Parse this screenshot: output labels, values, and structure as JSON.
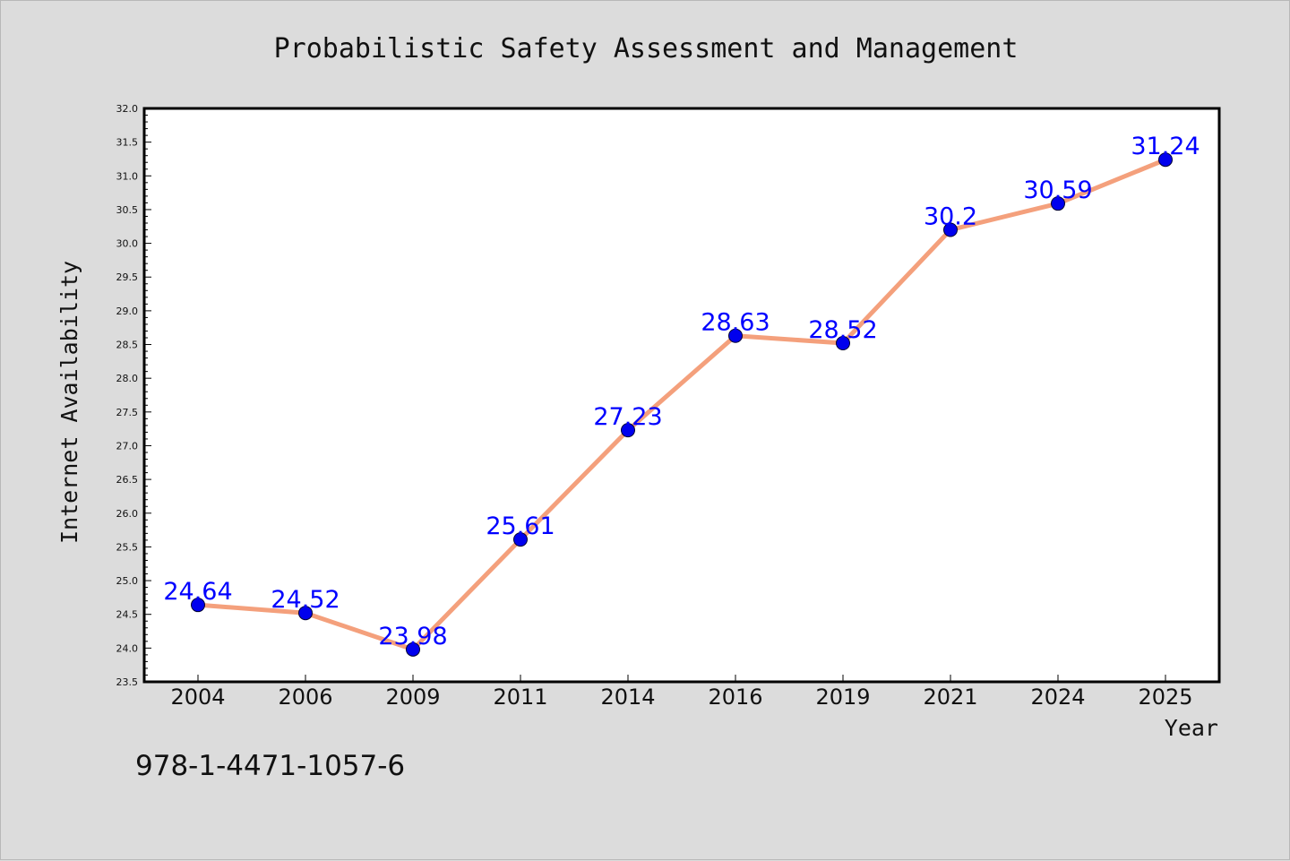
{
  "chart_data": {
    "type": "line",
    "title": "Probabilistic Safety Assessment and Management",
    "xlabel": "Year",
    "ylabel": "Internet Availability",
    "categories": [
      "2004",
      "2006",
      "2009",
      "2011",
      "2014",
      "2016",
      "2019",
      "2021",
      "2024",
      "2025"
    ],
    "series": [
      {
        "values": [
          24.64,
          24.52,
          23.98,
          25.61,
          27.23,
          28.63,
          28.52,
          30.2,
          30.59,
          31.24
        ],
        "data_labels": [
          "24.64",
          "24.52",
          "23.98",
          "25.61",
          "27.23",
          "28.63",
          "28.52",
          "30.2",
          "30.59",
          "31.24"
        ]
      }
    ],
    "ylim": [
      23.5,
      32.0
    ],
    "yticks": [
      "23.5",
      "24.0",
      "24.5",
      "25.0",
      "25.5",
      "26.0",
      "26.5",
      "27.0",
      "27.5",
      "28.0",
      "28.5",
      "29.0",
      "29.5",
      "30.0",
      "30.5",
      "31.0",
      "31.5",
      "32.0"
    ],
    "grid": false,
    "colors": {
      "line": "#f4a07c",
      "marker": "#0000ee",
      "marker_edge": "#000033",
      "data_label": "#0000ff",
      "plot_background": "#ffffff",
      "page_background": "#dcdcdc"
    }
  },
  "footer_text": "978-1-4471-1057-6"
}
